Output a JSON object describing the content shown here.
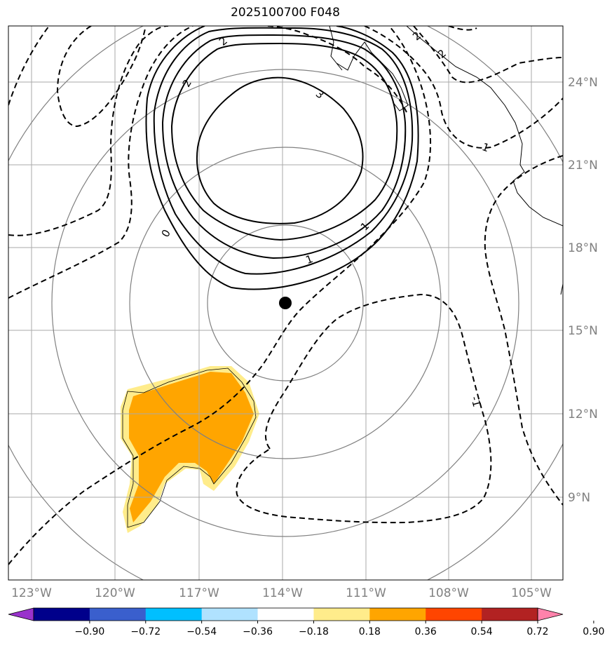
{
  "title": "2025100700 F048",
  "map": {
    "lon_labels": [
      "123°W",
      "120°W",
      "117°W",
      "114°W",
      "111°W",
      "108°W",
      "105°W"
    ],
    "lat_labels": [
      "24°N",
      "21°N",
      "18°N",
      "15°N",
      "12°N",
      "9°N"
    ],
    "contour_labels": [
      "2",
      "2",
      "3",
      "0",
      "1",
      "-1",
      "1",
      "1",
      "2",
      "2"
    ],
    "grid_color": "#aaaaaa",
    "range_ring_color": "#808080",
    "center_marker": "storm-center-dot"
  },
  "colorbar": {
    "colors": [
      "#9932cc",
      "#00008b",
      "#3a5fcd",
      "#00bfff",
      "#b0e2ff",
      "#ffffff",
      "#ffec8b",
      "#ffa500",
      "#ff4500",
      "#b22222",
      "#ff82ab"
    ],
    "tick_labels": [
      "−0.90",
      "−0.72",
      "−0.54",
      "−0.36",
      "−0.18",
      "0.18",
      "0.36",
      "0.54",
      "0.72",
      "0.90"
    ]
  }
}
